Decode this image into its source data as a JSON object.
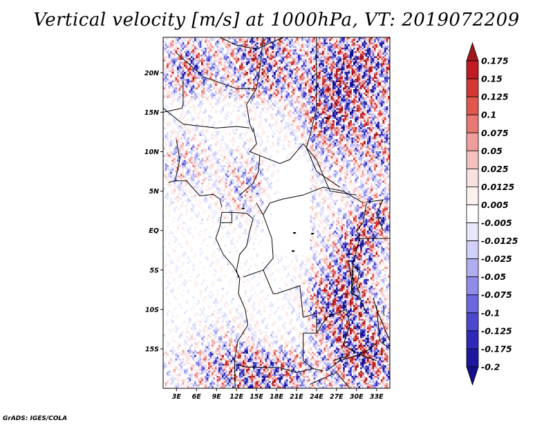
{
  "title": "Vertical velocity [m/s] at 1000hPa, VT: 2019072209",
  "credit": "GrADS: IGES/COLA",
  "chart_data": {
    "type": "heatmap",
    "title": "Vertical velocity [m/s] at 1000hPa, VT: 2019072209",
    "variable": "Vertical velocity",
    "units": "m/s",
    "level": "1000hPa",
    "valid_time": "2019072209",
    "x_ticks": [
      "3E",
      "6E",
      "9E",
      "12E",
      "15E",
      "18E",
      "21E",
      "24E",
      "27E",
      "30E",
      "33E"
    ],
    "y_ticks": [
      "20N",
      "15N",
      "10N",
      "5N",
      "EQ",
      "5S",
      "10S",
      "15S"
    ],
    "xlim": [
      1.0,
      35.0
    ],
    "ylim": [
      -20.0,
      24.5
    ],
    "colorbar": {
      "orientation": "vertical",
      "levels": [
        "0.175",
        "0.15",
        "0.125",
        "0.1",
        "0.075",
        "0.05",
        "0.025",
        "0.0125",
        "0.005",
        "-0.005",
        "-0.0125",
        "-0.025",
        "-0.05",
        "-0.075",
        "-0.1",
        "-0.125",
        "-0.175",
        "-0.2"
      ],
      "colors": [
        "#a1171c",
        "#c01b23",
        "#d43832",
        "#e1564d",
        "#e87873",
        "#ef9f9b",
        "#f5c1be",
        "#fae0de",
        "#fdf1f0",
        "#ffffff",
        "#e8e8fd",
        "#d0d0f8",
        "#b0aef1",
        "#8e8be9",
        "#6b68dd",
        "#4b47cf",
        "#2e29b9",
        "#1d17a0",
        "#15108a"
      ]
    },
    "grid": false,
    "legend": "right colorbar"
  }
}
